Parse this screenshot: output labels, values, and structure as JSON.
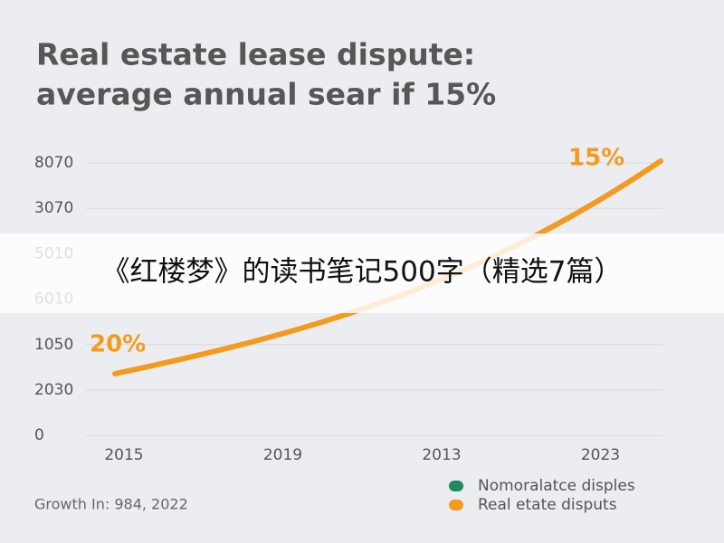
{
  "chart_data": {
    "type": "line",
    "title_lines": [
      "Real estate lease dispute:",
      "average annual sear if 15%"
    ],
    "y_axis_labels": [
      "8070",
      "3070",
      "5010",
      "6010",
      "1050",
      "2030",
      "0"
    ],
    "categories": [
      "2015",
      "2019",
      "2013",
      "2023"
    ],
    "annotations": [
      "20%",
      "15%"
    ],
    "legend": [
      {
        "name": "Nomoralatce disples",
        "color": "#1f8a5b"
      },
      {
        "name": "Real etate disputs",
        "color": "#f39b1e"
      }
    ],
    "footnote": "Growth In: 984, 2022"
  },
  "overlay_banner": {
    "text": "《红楼梦》的读书笔记500字（精选7篇）"
  }
}
